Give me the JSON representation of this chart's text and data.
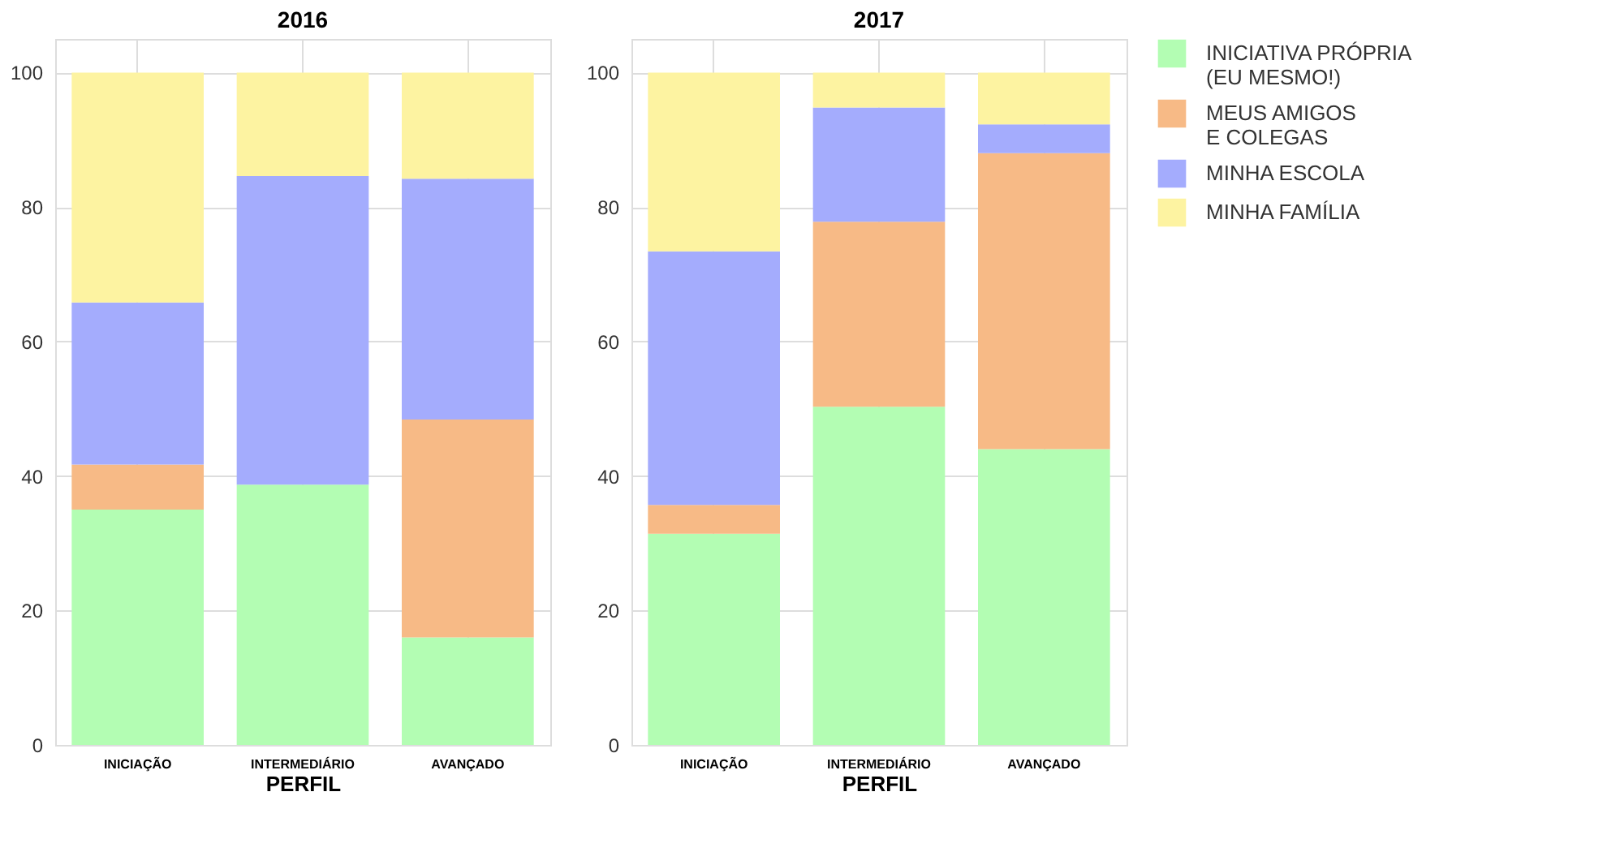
{
  "chart_data": [
    {
      "type": "bar",
      "stacked": true,
      "title": "2016",
      "xlabel": "PERFIL",
      "categories": [
        "INICIAÇÃO",
        "INTERMEDIÁRIO",
        "AVANÇADO"
      ],
      "ylim": [
        0,
        105
      ],
      "yticks": [
        0,
        20,
        40,
        60,
        80,
        100
      ],
      "grid": true,
      "legend": "right",
      "series": [
        {
          "name": "INICIATIVA PRÓPRIA\n (EU MESMO!)",
          "color": "#b3fdb3",
          "values": [
            35,
            38.7,
            16
          ]
        },
        {
          "name": "MEUS AMIGOS\n E COLEGAS",
          "color": "#f7ba86",
          "values": [
            6.7,
            0,
            32.4
          ]
        },
        {
          "name": "MINHA ESCOLA",
          "color": "#a4acfd",
          "values": [
            24.1,
            45.9,
            35.8
          ]
        },
        {
          "name": "MINHA FAMÍLIA",
          "color": "#fdf3a1",
          "values": [
            34.2,
            15.4,
            15.8
          ]
        }
      ]
    },
    {
      "type": "bar",
      "stacked": true,
      "title": "2017",
      "xlabel": "PERFIL",
      "categories": [
        "INICIAÇÃO",
        "INTERMEDIÁRIO",
        "AVANÇADO"
      ],
      "ylim": [
        0,
        105
      ],
      "yticks": [
        0,
        20,
        40,
        60,
        80,
        100
      ],
      "grid": true,
      "legend": "right",
      "series": [
        {
          "name": "INICIATIVA PRÓPRIA\n (EU MESMO!)",
          "color": "#b3fdb3",
          "values": [
            31.4,
            50.3,
            44
          ]
        },
        {
          "name": "MEUS AMIGOS\n E COLEGAS",
          "color": "#f7ba86",
          "values": [
            4.3,
            27.5,
            44
          ]
        },
        {
          "name": "MINHA ESCOLA",
          "color": "#a4acfd",
          "values": [
            37.7,
            17,
            4.3
          ]
        },
        {
          "name": "MINHA FAMÍLIA",
          "color": "#fdf3a1",
          "values": [
            26.6,
            5.2,
            7.7
          ]
        }
      ]
    }
  ]
}
